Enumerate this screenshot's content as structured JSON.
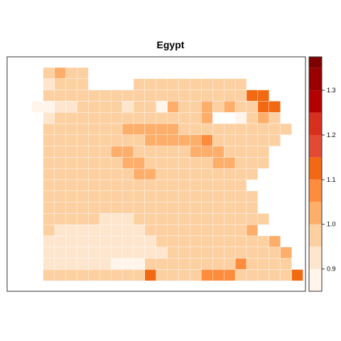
{
  "chart_data": {
    "type": "heatmap",
    "title": "Egypt",
    "grid": {
      "cols": 23,
      "rows": 19,
      "null_code": ".",
      "legend_to_level": "digit = index into colorbar.bins (0 = lowest bin)",
      "cells": [
        "..2322..........",
        "..1222....2222222222...",
        "..22222222222222222255.",
        ".0011222212203223232255..",
        "..122222222222223..0232.",
        "..2222222333332222222222",
        "..222222222333334222222",
        "..22222233222223332222",
        "..22222223322222233222",
        "..2222222233222222222",
        "..222222222222222222",
        "..2222222222222222222",
        "..2222222222222222222",
        "..22222111222222222222",
        "..2111111112222222223",
        "..111111111122222222223",
        "..1111111111122222222223",
        "..1111110002222222242222",
        "..22222222252222444222225"
      ]
    },
    "colorbar": {
      "bins": [
        [
          0.85,
          0.9
        ],
        [
          0.9,
          0.95
        ],
        [
          0.95,
          1.0
        ],
        [
          1.0,
          1.05
        ],
        [
          1.05,
          1.1
        ],
        [
          1.1,
          1.15
        ],
        [
          1.15,
          1.2
        ],
        [
          1.2,
          1.25
        ],
        [
          1.25,
          1.3
        ],
        [
          1.3,
          1.35
        ],
        [
          1.35,
          1.375
        ]
      ],
      "colors": [
        "#FFF5EB",
        "#FEE6CE",
        "#FDD0A2",
        "#FDAE6B",
        "#FD8D3C",
        "#F16913",
        "#E34A33",
        "#D7301F",
        "#B30000",
        "#990000",
        "#7F0000"
      ],
      "ticks": [
        "0.9",
        "1.0",
        "1.1",
        "1.2",
        "1.3"
      ],
      "tick_values": [
        0.9,
        1.0,
        1.1,
        1.2,
        1.3
      ],
      "range": [
        0.85,
        1.375
      ]
    }
  }
}
